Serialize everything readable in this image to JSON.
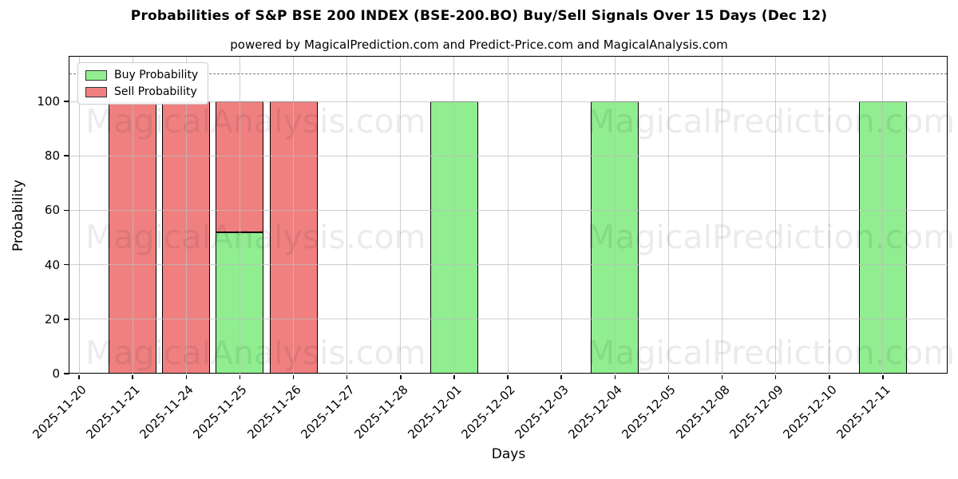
{
  "figure": {
    "title": "Probabilities of S&P BSE 200 INDEX (BSE-200.BO) Buy/Sell Signals Over 15 Days (Dec 12)",
    "subtitle": "powered by MagicalPrediction.com and Predict-Price.com and MagicalAnalysis.com"
  },
  "chart_data": {
    "type": "bar",
    "stacked": true,
    "title": "Probabilities of S&P BSE 200 INDEX (BSE-200.BO) Buy/Sell Signals Over 15 Days (Dec 12)",
    "subtitle": "powered by MagicalPrediction.com and Predict-Price.com and MagicalAnalysis.com",
    "xlabel": "Days",
    "ylabel": "Probability",
    "ylim": [
      0,
      116
    ],
    "yticks": [
      0,
      20,
      40,
      60,
      80,
      100
    ],
    "grid": true,
    "threshold_line": {
      "y": 110,
      "style": "dashed",
      "color": "#7a7a7a"
    },
    "categories": [
      "2025-11-20",
      "2025-11-21",
      "2025-11-24",
      "2025-11-25",
      "2025-11-26",
      "2025-11-27",
      "2025-11-28",
      "2025-12-01",
      "2025-12-02",
      "2025-12-03",
      "2025-12-04",
      "2025-12-05",
      "2025-12-08",
      "2025-12-09",
      "2025-12-10",
      "2025-12-11"
    ],
    "series": [
      {
        "name": "Buy Probability",
        "color": "#90EE90",
        "values": [
          0,
          0,
          0,
          52,
          0,
          0,
          0,
          100,
          0,
          0,
          100,
          0,
          0,
          0,
          0,
          100
        ]
      },
      {
        "name": "Sell Probability",
        "color": "#F08080",
        "values": [
          0,
          100,
          100,
          48,
          100,
          0,
          0,
          0,
          0,
          0,
          0,
          0,
          0,
          0,
          0,
          0
        ]
      }
    ],
    "bar_edge_color": "#000000",
    "legend": {
      "position": "top-left",
      "entries": [
        {
          "label": "Buy Probability",
          "color": "#90EE90"
        },
        {
          "label": "Sell Probability",
          "color": "#F08080"
        }
      ]
    },
    "watermarks": {
      "left_text": "MagicalAnalysis.com",
      "right_text": "MagicalPrediction.com"
    }
  }
}
